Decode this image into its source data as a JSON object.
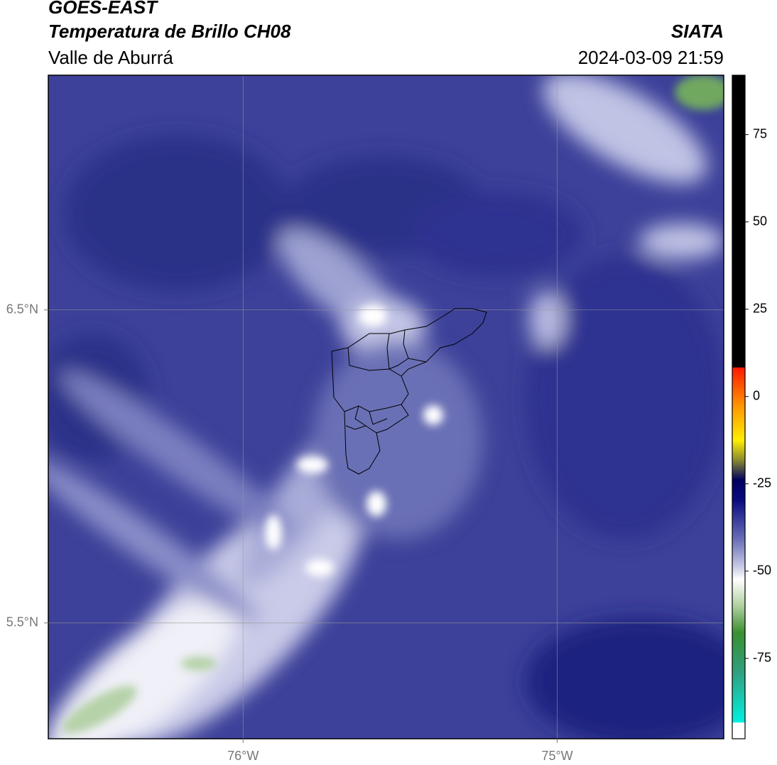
{
  "header": {
    "title": "GOES-EAST",
    "subtitle": "Temperatura de Brillo CH08",
    "region": "Valle de Aburrá",
    "source": "SIATA",
    "datetime": "2024-03-09 21:59"
  },
  "map": {
    "xlim": [
      -76.62,
      -74.47
    ],
    "ylim": [
      5.13,
      7.25
    ],
    "xticks": [
      {
        "value": -76,
        "label": "76°W"
      },
      {
        "value": -75,
        "label": "75°W"
      }
    ],
    "yticks": [
      {
        "value": 6.5,
        "label": "6.5°N"
      },
      {
        "value": 5.5,
        "label": "5.5°N"
      }
    ],
    "grid": true
  },
  "colorbar": {
    "lim": [
      -98,
      92
    ],
    "ticks": [
      75,
      50,
      25,
      0,
      -25,
      -50,
      -75
    ]
  }
}
